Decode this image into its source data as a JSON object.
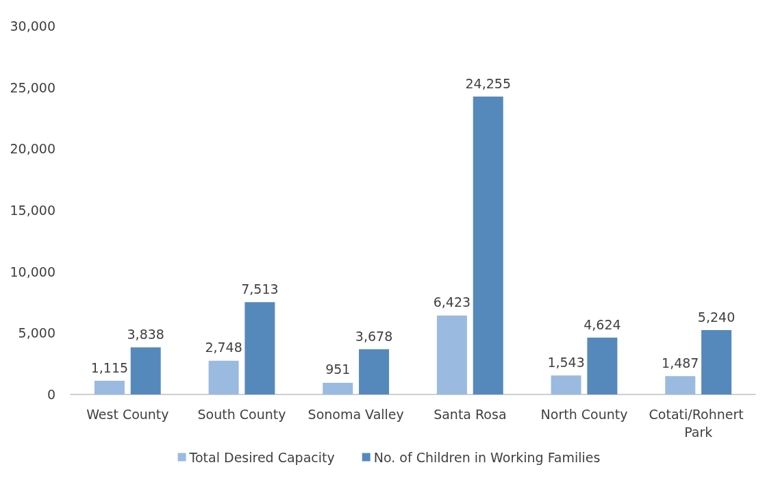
{
  "chart_data": {
    "type": "bar",
    "categories": [
      "West County",
      "South County",
      "Sonoma Valley",
      "Santa Rosa",
      "North County",
      "Cotati/Rohnert Park"
    ],
    "series": [
      {
        "name": "Total Desired Capacity",
        "color": "#9bbadf",
        "values": [
          1115,
          2748,
          951,
          6423,
          1543,
          1487
        ],
        "value_labels": [
          "1,115",
          "2,748",
          "951",
          "6,423",
          "1,543",
          "1,487"
        ]
      },
      {
        "name": "No. of Children in Working Families",
        "color": "#5589bb",
        "values": [
          3838,
          7513,
          3678,
          24255,
          4624,
          5240
        ],
        "value_labels": [
          "3,838",
          "7,513",
          "3,678",
          "24,255",
          "4,624",
          "5,240"
        ]
      }
    ],
    "ylim": [
      0,
      30000
    ],
    "yticks": [
      {
        "value": 0,
        "label": "0"
      },
      {
        "value": 5000,
        "label": "5,000"
      },
      {
        "value": 10000,
        "label": "10,000"
      },
      {
        "value": 15000,
        "label": "15,000"
      },
      {
        "value": 20000,
        "label": "20,000"
      },
      {
        "value": 25000,
        "label": "25,000"
      },
      {
        "value": 30000,
        "label": "30,000"
      }
    ],
    "grid": false,
    "legend": "bottom"
  }
}
